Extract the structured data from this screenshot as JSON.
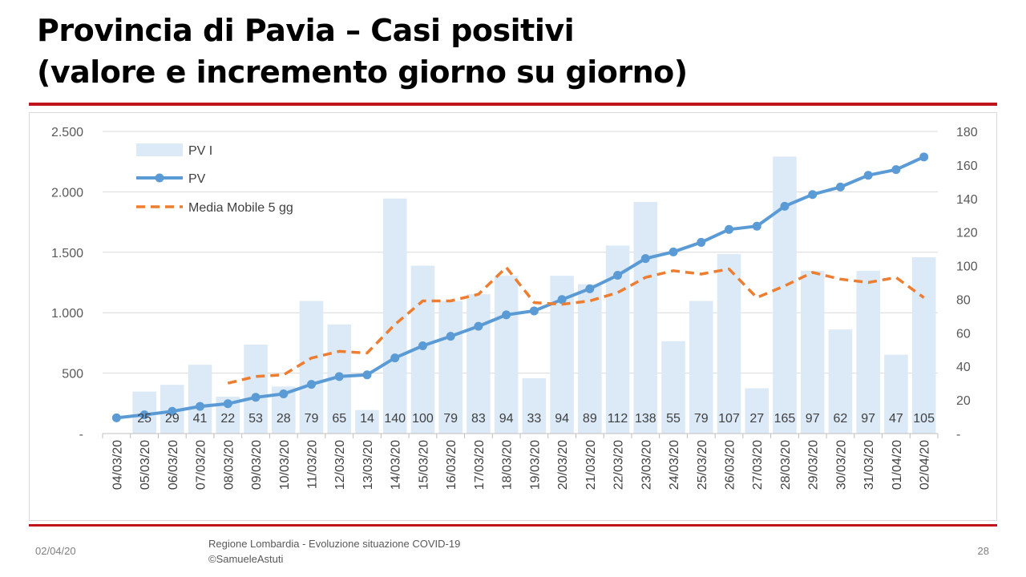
{
  "slide": {
    "title_line1": "Provincia di Pavia – Casi positivi",
    "title_line2": "(valore e incremento giorno su giorno)",
    "footer_date": "02/04/20",
    "footer_source_line1": "Regione Lombardia - Evoluzione situazione COVID-19",
    "footer_source_line2": "©SamueleAstuti",
    "page_number": "28"
  },
  "colors": {
    "bar": "#dce9f6",
    "line": "#5b9bd5",
    "moving_average": "#ed7d31",
    "title_rule": "#c0141c",
    "grid": "#d9d9d9"
  },
  "chart_data": {
    "type": "bar+line",
    "categories": [
      "04/03/20",
      "05/03/20",
      "06/03/20",
      "07/03/20",
      "08/03/20",
      "09/03/20",
      "10/03/20",
      "11/03/20",
      "12/03/20",
      "13/03/20",
      "14/03/20",
      "15/03/20",
      "16/03/20",
      "17/03/20",
      "18/03/20",
      "19/03/20",
      "20/03/20",
      "21/03/20",
      "22/03/20",
      "23/03/20",
      "24/03/20",
      "25/03/20",
      "26/03/20",
      "27/03/20",
      "28/03/20",
      "29/03/20",
      "30/03/20",
      "31/03/20",
      "01/04/20",
      "02/04/20"
    ],
    "left_axis": {
      "ylim": [
        0,
        2500
      ],
      "ticks": [
        "-",
        "500",
        "1.000",
        "1.500",
        "2.000",
        "2.500"
      ]
    },
    "right_axis": {
      "ylim": [
        0,
        180
      ],
      "ticks": [
        "-",
        "20",
        "40",
        "60",
        "80",
        "100",
        "120",
        "140",
        "160",
        "180"
      ]
    },
    "grid": true,
    "legend_position": "top-left",
    "series": [
      {
        "name": "PV I",
        "type": "bar",
        "axis": "right",
        "show_value_labels": true,
        "values": [
          null,
          25,
          29,
          41,
          22,
          53,
          28,
          79,
          65,
          14,
          140,
          100,
          79,
          83,
          94,
          33,
          94,
          89,
          112,
          138,
          55,
          79,
          107,
          27,
          165,
          97,
          62,
          97,
          47,
          105
        ]
      },
      {
        "name": "PV",
        "type": "line",
        "axis": "left",
        "markers": true,
        "values": [
          130,
          155,
          184,
          225,
          247,
          300,
          328,
          407,
          472,
          486,
          626,
          726,
          805,
          888,
          982,
          1015,
          1109,
          1198,
          1310,
          1448,
          1503,
          1582,
          1689,
          1716,
          1881,
          1978,
          2040,
          2137,
          2184,
          2289
        ]
      },
      {
        "name": "Media Mobile 5 gg",
        "type": "line",
        "axis": "right",
        "dashed": true,
        "values": [
          null,
          null,
          null,
          null,
          30,
          34,
          35,
          45,
          49,
          48,
          65,
          79,
          79,
          83,
          99,
          78,
          77,
          79,
          84,
          93,
          97,
          95,
          98,
          81,
          88,
          96,
          92,
          90,
          93,
          81
        ]
      }
    ]
  }
}
